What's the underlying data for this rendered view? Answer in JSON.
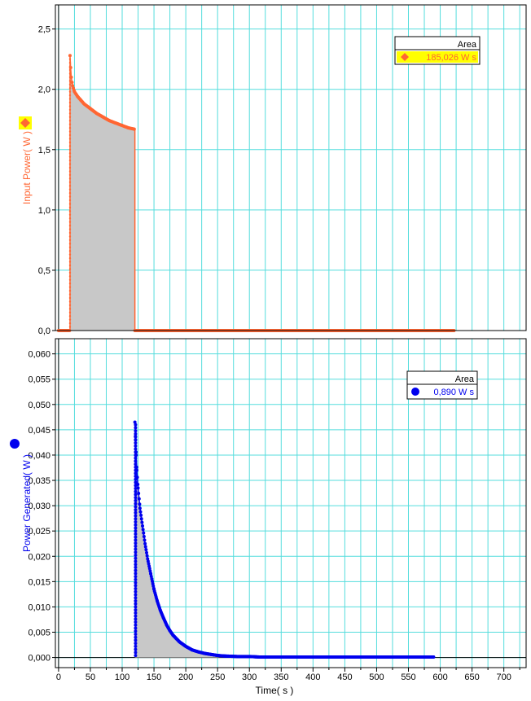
{
  "chart_data": [
    {
      "type": "scatter",
      "ylabel": "Input Power( W )",
      "ylim": [
        0,
        2.7
      ],
      "yticks": [
        "0,0",
        "0,5",
        "1,0",
        "1,5",
        "2,0",
        "2,5"
      ],
      "ytick_values": [
        0,
        0.5,
        1.0,
        1.5,
        2.0,
        2.5
      ],
      "xlim": [
        -5,
        735
      ],
      "grid": true,
      "shaded_area": true,
      "series": [
        {
          "color": "#ff6633",
          "marker": "diamond",
          "x": [
            0,
            10,
            18,
            18,
            19,
            20,
            22,
            25,
            30,
            35,
            40,
            50,
            60,
            70,
            80,
            90,
            100,
            110,
            119,
            120,
            120,
            130,
            200,
            300,
            360,
            370,
            380,
            400,
            450,
            500,
            550,
            600,
            622
          ],
          "y": [
            0,
            0,
            0,
            2.28,
            2.18,
            2.1,
            2.03,
            1.98,
            1.94,
            1.91,
            1.88,
            1.84,
            1.8,
            1.77,
            1.74,
            1.72,
            1.7,
            1.68,
            1.67,
            1.67,
            0,
            0,
            0,
            0,
            0,
            0,
            0,
            0,
            0,
            0,
            0,
            0,
            0
          ]
        }
      ],
      "legend": {
        "header": "Area",
        "value": "185,026 W s",
        "placement": "top-right",
        "highlight": "#ffff00",
        "text_color": "#ff6633"
      },
      "axis_marker": {
        "shape": "diamond",
        "color": "#ff6633",
        "highlight": "#ffff00"
      }
    },
    {
      "type": "scatter",
      "xlabel": "Time( s )",
      "ylabel": "Power Generated( W )",
      "ylim": [
        -0.002,
        0.063
      ],
      "yticks": [
        "0,000",
        "0,005",
        "0,010",
        "0,015",
        "0,020",
        "0,025",
        "0,030",
        "0,035",
        "0,040",
        "0,045",
        "0,050",
        "0,055",
        "0,060"
      ],
      "ytick_values": [
        0,
        0.005,
        0.01,
        0.015,
        0.02,
        0.025,
        0.03,
        0.035,
        0.04,
        0.045,
        0.05,
        0.055,
        0.06
      ],
      "xlim": [
        -5,
        735
      ],
      "xticks": [
        "0",
        "50",
        "100",
        "150",
        "200",
        "250",
        "300",
        "350",
        "400",
        "450",
        "500",
        "550",
        "600",
        "650",
        "700"
      ],
      "xtick_values": [
        0,
        50,
        100,
        150,
        200,
        250,
        300,
        350,
        400,
        450,
        500,
        550,
        600,
        650,
        700
      ],
      "grid": true,
      "shaded_area": true,
      "series": [
        {
          "color": "#0000ee",
          "marker": "circle",
          "x": [
            120,
            121,
            122,
            123,
            125,
            128,
            132,
            136,
            140,
            145,
            150,
            155,
            160,
            165,
            170,
            175,
            180,
            190,
            200,
            210,
            220,
            230,
            240,
            250,
            260,
            280,
            300,
            315,
            340,
            400,
            450,
            500,
            550,
            560,
            570,
            580,
            590
          ],
          "y": [
            0.0465,
            0.043,
            0.04,
            0.037,
            0.0335,
            0.0295,
            0.026,
            0.0225,
            0.0195,
            0.0165,
            0.0135,
            0.0112,
            0.0093,
            0.0078,
            0.0064,
            0.0053,
            0.0044,
            0.0031,
            0.0022,
            0.0015,
            0.0011,
            0.0008,
            0.0006,
            0.0004,
            0.0003,
            0.0002,
            0.0002,
            0.0001,
            0.0001,
            0.0001,
            0.0001,
            0.0001,
            0.0001,
            0.0001,
            0.0001,
            0.0001,
            0.0001
          ]
        }
      ],
      "legend": {
        "header": "Area",
        "value": "0,890 W s",
        "placement": "top-right",
        "text_color": "#0000ee"
      },
      "axis_marker": {
        "shape": "circle",
        "color": "#0000ee"
      }
    }
  ]
}
